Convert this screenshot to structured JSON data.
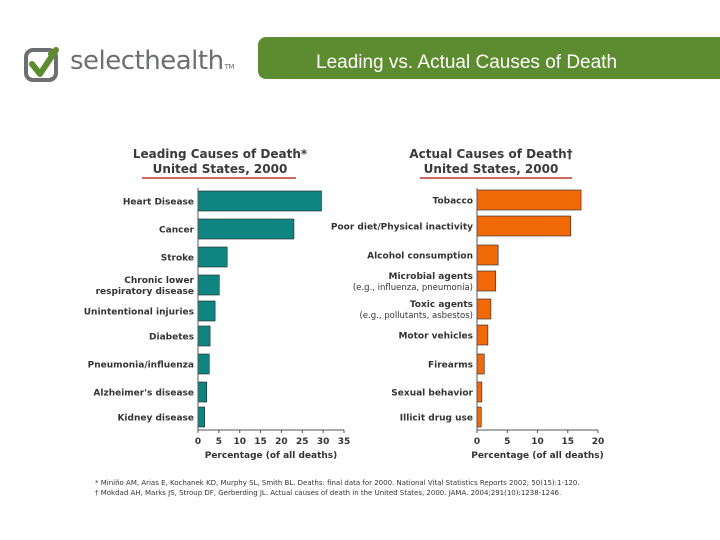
{
  "header": {
    "brand_name": "selecthealth",
    "brand_tm": "TM",
    "slide_title": "Leading vs. Actual Causes of Death"
  },
  "colors": {
    "brand_green": "#5d8b2f",
    "leading_bar": "#0f8582",
    "actual_bar": "#f26a08",
    "title_rule": "#c0392b"
  },
  "chart_data": [
    {
      "type": "bar",
      "orientation": "horizontal",
      "title_line1": "Leading Causes of Death*",
      "title_line2": "United States, 2000",
      "categories": [
        [
          "Heart Disease"
        ],
        [
          "Cancer"
        ],
        [
          "Stroke"
        ],
        [
          "Chronic lower",
          "respiratory disease"
        ],
        [
          "Unintentional injuries"
        ],
        [
          "Diabetes"
        ],
        [
          "Pneumonia/influenza"
        ],
        [
          "Alzheimer's disease"
        ],
        [
          "Kidney disease"
        ]
      ],
      "values": [
        29.6,
        23.0,
        7.0,
        5.1,
        4.1,
        2.9,
        2.7,
        2.1,
        1.6
      ],
      "xlim": [
        0,
        35
      ],
      "xticks": [
        0,
        5,
        10,
        15,
        20,
        25,
        30,
        35
      ],
      "xlabel": "Percentage (of all deaths)",
      "color": "#0f8582"
    },
    {
      "type": "bar",
      "orientation": "horizontal",
      "title_line1": "Actual Causes of Death†",
      "title_line2": "United States, 2000",
      "categories": [
        [
          "Tobacco"
        ],
        [
          "Poor diet/Physical inactivity"
        ],
        [
          "Alcohol consumption"
        ],
        [
          "Microbial agents",
          "(e.g., influenza, pneumonia)"
        ],
        [
          "Toxic agents",
          "(e.g., pollutants, asbestos)"
        ],
        [
          "Motor vehicles"
        ],
        [
          "Firearms"
        ],
        [
          "Sexual behavior"
        ],
        [
          "Illicit drug use"
        ]
      ],
      "values": [
        17.2,
        15.5,
        3.5,
        3.1,
        2.3,
        1.8,
        1.2,
        0.8,
        0.7
      ],
      "xlim": [
        0,
        20
      ],
      "xticks": [
        0,
        5,
        10,
        15,
        20
      ],
      "xlabel": "Percentage (of all deaths)",
      "color": "#f26a08"
    }
  ],
  "footnotes": [
    "* Miniño AM, Arias E, Kochanek KD, Murphy SL, Smith BL. Deaths: final data for 2000. National Vital Statistics Reports 2002; 50(15):1-120.",
    "† Mokdad AH, Marks JS, Stroup DF, Gerberding JL.  Actual causes of death in the United States, 2000.  JAMA. 2004;291(10):1238-1246."
  ]
}
